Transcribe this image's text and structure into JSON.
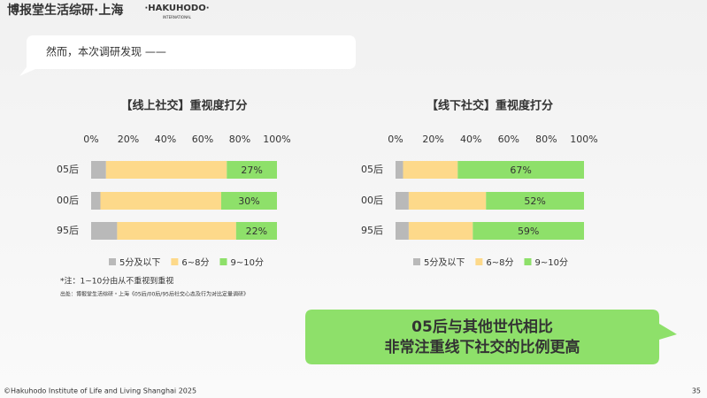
{
  "header": {
    "brand": "博报堂生活综研·上海",
    "logo": "·HAKUHODO·",
    "logo_sub": "INTERNATIONAL"
  },
  "bubble": "然而，本次调研发现 ——",
  "chart_data": [
    {
      "type": "bar",
      "orientation": "horizontal",
      "stacked": true,
      "title": "【线上社交】重视度打分",
      "categories": [
        "05后",
        "00后",
        "95后"
      ],
      "series": [
        {
          "name": "5分及以下",
          "color": "#b9b9b9",
          "values": [
            8,
            5,
            14
          ]
        },
        {
          "name": "6~8分",
          "color": "#fdd98a",
          "values": [
            65,
            65,
            64
          ]
        },
        {
          "name": "9~10分",
          "color": "#8ee06a",
          "values": [
            27,
            30,
            22
          ],
          "value_labels": [
            "27%",
            "30%",
            "22%"
          ]
        }
      ],
      "xlim": [
        0,
        100
      ],
      "xticks": [
        {
          "value": 0,
          "label": "0%"
        },
        {
          "value": 20,
          "label": "20%"
        },
        {
          "value": 40,
          "label": "40%"
        },
        {
          "value": 60,
          "label": "60%"
        },
        {
          "value": 80,
          "label": "80%"
        },
        {
          "value": 100,
          "label": "100%"
        }
      ]
    },
    {
      "type": "bar",
      "orientation": "horizontal",
      "stacked": true,
      "title": "【线下社交】重视度打分",
      "categories": [
        "05后",
        "00后",
        "95后"
      ],
      "series": [
        {
          "name": "5分及以下",
          "color": "#b9b9b9",
          "values": [
            4,
            7,
            7
          ]
        },
        {
          "name": "6~8分",
          "color": "#fdd98a",
          "values": [
            29,
            41,
            34
          ]
        },
        {
          "name": "9~10分",
          "color": "#8ee06a",
          "values": [
            67,
            52,
            59
          ],
          "value_labels": [
            "67%",
            "52%",
            "59%"
          ]
        }
      ],
      "xlim": [
        0,
        100
      ],
      "xticks": [
        {
          "value": 0,
          "label": "0%"
        },
        {
          "value": 20,
          "label": "20%"
        },
        {
          "value": 40,
          "label": "40%"
        },
        {
          "value": 60,
          "label": "60%"
        },
        {
          "value": 80,
          "label": "80%"
        },
        {
          "value": 100,
          "label": "100%"
        }
      ]
    }
  ],
  "notes": {
    "note": "*注：1~10分由从不重视到重视",
    "source": "出处：博报堂生活综研・上海《05后/00后/95后社交心态及行为对比定量调研》"
  },
  "callout": [
    "05后与其他世代相比",
    "非常注重线下社交的比例更高"
  ],
  "footer": {
    "copyright": "©Hakuhodo Institute of Life and Living Shanghai 2025",
    "page": "35"
  }
}
